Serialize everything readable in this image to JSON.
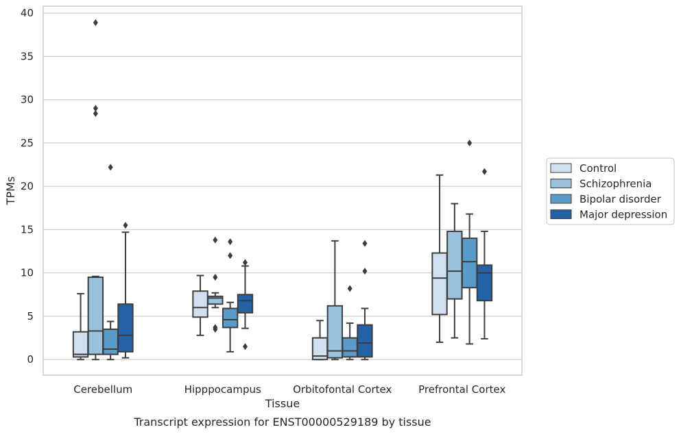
{
  "chart_data": {
    "type": "boxplot",
    "xlabel": "Tissue",
    "ylabel": "TPMs",
    "caption": "Transcript expression for ENST00000529189 by tissue",
    "ylim": [
      -1.8,
      40.8
    ],
    "yticks": [
      0,
      5,
      10,
      15,
      20,
      25,
      30,
      35,
      40
    ],
    "grid": "horizontal",
    "legend_position": "right",
    "categories": [
      "Cerebellum",
      "Hipppocampus",
      "Orbitofontal Cortex",
      "Prefrontal Cortex"
    ],
    "series": [
      {
        "name": "Control",
        "color": "#d1e0f0",
        "boxes": [
          {
            "whislo": 0.0,
            "q1": 0.3,
            "med": 0.6,
            "q3": 3.2,
            "whishi": 7.6,
            "fliers": []
          },
          {
            "whislo": 2.8,
            "q1": 4.9,
            "med": 6.0,
            "q3": 7.9,
            "whishi": 9.7,
            "fliers": []
          },
          {
            "whislo": 0.0,
            "q1": 0.0,
            "med": 0.4,
            "q3": 2.5,
            "whishi": 4.5,
            "fliers": []
          },
          {
            "whislo": 2.0,
            "q1": 5.2,
            "med": 9.4,
            "q3": 12.3,
            "whishi": 21.3,
            "fliers": []
          }
        ]
      },
      {
        "name": "Schizophrenia",
        "color": "#9ac2dc",
        "boxes": [
          {
            "whislo": 0.0,
            "q1": 0.6,
            "med": 3.3,
            "q3": 9.5,
            "whishi": 9.6,
            "fliers": [
              28.4,
              29.0,
              38.9
            ]
          },
          {
            "whislo": 6.0,
            "q1": 6.4,
            "med": 7.1,
            "q3": 7.3,
            "whishi": 7.7,
            "fliers": [
              3.5,
              3.7,
              9.5,
              13.8
            ]
          },
          {
            "whislo": 0.0,
            "q1": 0.2,
            "med": 1.0,
            "q3": 6.2,
            "whishi": 13.7,
            "fliers": []
          },
          {
            "whislo": 2.5,
            "q1": 7.0,
            "med": 10.2,
            "q3": 14.8,
            "whishi": 18.0,
            "fliers": []
          }
        ]
      },
      {
        "name": "Bipolar disorder",
        "color": "#5a9bc8",
        "boxes": [
          {
            "whislo": 0.0,
            "q1": 0.6,
            "med": 1.2,
            "q3": 3.5,
            "whishi": 4.4,
            "fliers": [
              22.2
            ]
          },
          {
            "whislo": 0.9,
            "q1": 3.7,
            "med": 4.6,
            "q3": 5.9,
            "whishi": 6.6,
            "fliers": [
              12.0,
              13.6
            ]
          },
          {
            "whislo": 0.0,
            "q1": 0.3,
            "med": 1.0,
            "q3": 2.5,
            "whishi": 4.2,
            "fliers": [
              8.2
            ]
          },
          {
            "whislo": 1.8,
            "q1": 8.3,
            "med": 11.3,
            "q3": 14.0,
            "whishi": 16.8,
            "fliers": [
              25.0
            ]
          }
        ]
      },
      {
        "name": "Major depression",
        "color": "#2363a5",
        "boxes": [
          {
            "whislo": 0.2,
            "q1": 0.9,
            "med": 2.8,
            "q3": 6.4,
            "whishi": 14.7,
            "fliers": [
              15.5
            ]
          },
          {
            "whislo": 3.6,
            "q1": 5.4,
            "med": 6.8,
            "q3": 7.5,
            "whishi": 10.8,
            "fliers": [
              1.5,
              11.2
            ]
          },
          {
            "whislo": 0.0,
            "q1": 0.3,
            "med": 1.9,
            "q3": 4.0,
            "whishi": 5.9,
            "fliers": [
              10.2,
              13.4
            ]
          },
          {
            "whislo": 2.4,
            "q1": 6.8,
            "med": 10.0,
            "q3": 10.9,
            "whishi": 14.8,
            "fliers": [
              21.7
            ]
          }
        ]
      }
    ]
  }
}
